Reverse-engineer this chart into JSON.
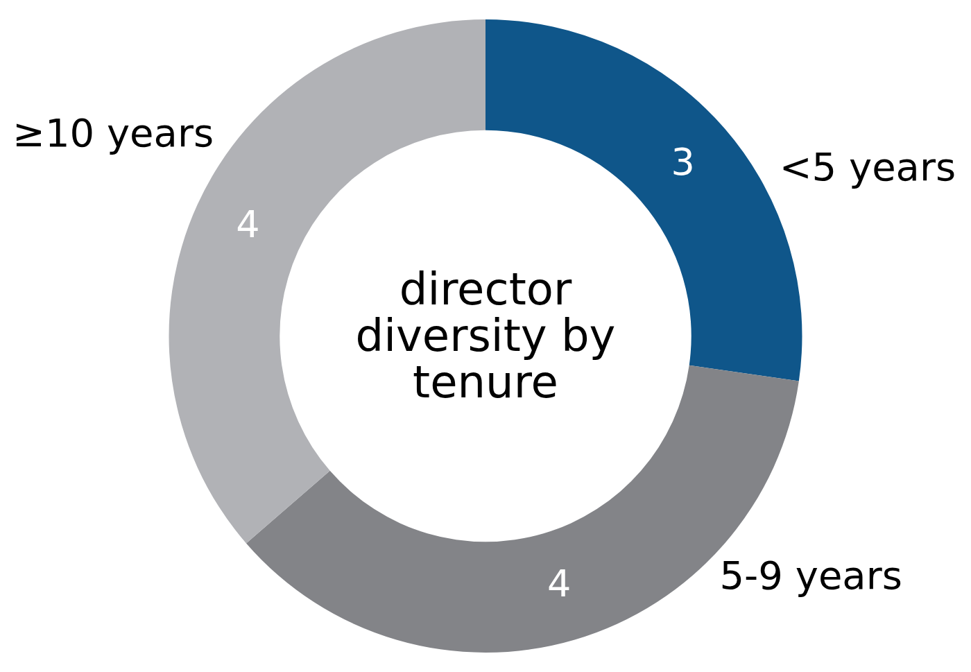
{
  "chart_data": {
    "type": "donut",
    "title": "director diversity by tenure",
    "categories": [
      "<5 years",
      "5-9 years",
      "≥10 years"
    ],
    "values": [
      3,
      4,
      4
    ],
    "colors": [
      "#0f568a",
      "#838488",
      "#b1b2b6"
    ],
    "data_labels": true,
    "legend": false
  }
}
